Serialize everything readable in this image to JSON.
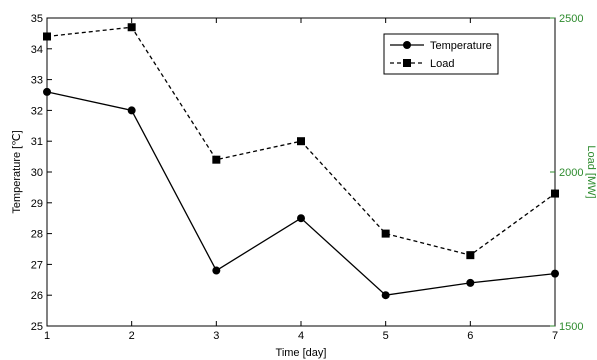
{
  "chart_data": {
    "type": "line",
    "xlabel": "Time [day]",
    "ylabel": "Temperature [℃]",
    "y2label": "Load [MW]",
    "x": [
      1,
      2,
      3,
      4,
      5,
      6,
      7
    ],
    "xlim": [
      1,
      7
    ],
    "ylim": [
      25,
      35
    ],
    "y2lim": [
      1500,
      2500
    ],
    "x_ticks": [
      "1",
      "2",
      "3",
      "4",
      "5",
      "6",
      "7"
    ],
    "y_ticks": [
      "25",
      "26",
      "27",
      "28",
      "29",
      "30",
      "31",
      "32",
      "33",
      "34",
      "35"
    ],
    "y2_ticks": [
      "1500",
      "2000",
      "2500"
    ],
    "grid": false,
    "legend_position": "top-right",
    "series": [
      {
        "name": "Temperature",
        "axis": "left",
        "values": [
          32.6,
          32.0,
          26.8,
          28.5,
          26.0,
          26.4,
          26.7
        ],
        "marker": "circle",
        "line_style": "solid",
        "color": "#000000"
      },
      {
        "name": "Load",
        "axis": "right",
        "values": [
          2440,
          2470,
          2040,
          2100,
          1800,
          1730,
          1930
        ],
        "marker": "square",
        "line_style": "dashed",
        "color": "#000000"
      }
    ],
    "y2_color": "#2e8b2e"
  }
}
